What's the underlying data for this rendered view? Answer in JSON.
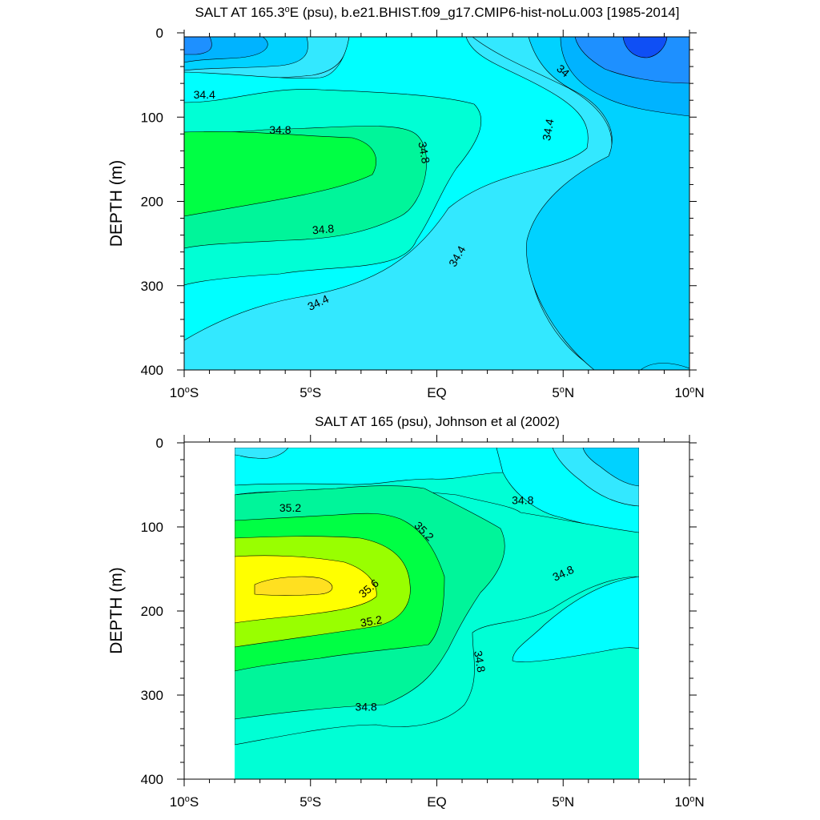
{
  "chart_data": [
    {
      "type": "contour",
      "title": "SALT AT 165.3°E (psu), b.e21.BHIST.f09_g17.CMIP6-hist-noLu.003 [1985-2014]",
      "title_parts": [
        "SALT AT 165.3",
        "E (psu), b.e21.BHIST.f09_g17.CMIP6-hist-noLu.003 [1985-2014]"
      ],
      "ylabel": "DEPTH (m)",
      "x_range": [
        -10,
        10
      ],
      "y_range": [
        0,
        400
      ],
      "y_inverted": true,
      "x_ticks": [
        {
          "value": -10,
          "num": "10",
          "hemi": "S"
        },
        {
          "value": -5,
          "num": "5",
          "hemi": "S"
        },
        {
          "value": 0,
          "num": "EQ",
          "hemi": ""
        },
        {
          "value": 5,
          "num": "5",
          "hemi": "N"
        },
        {
          "value": 10,
          "num": "10",
          "hemi": "N"
        }
      ],
      "y_ticks": [
        0,
        100,
        200,
        300,
        400
      ],
      "data_x_range": [
        -10,
        10
      ],
      "data_y_range": [
        5,
        400
      ],
      "contour_interval": 0.2,
      "levels": [
        {
          "min": 33.4,
          "max": 33.6,
          "color": "#0f4ff5"
        },
        {
          "min": 33.6,
          "max": 33.8,
          "color": "#1e90ff"
        },
        {
          "min": 33.8,
          "max": 34.0,
          "color": "#00b3ff"
        },
        {
          "min": 34.0,
          "max": 34.2,
          "color": "#00d2ff"
        },
        {
          "min": 34.2,
          "max": 34.4,
          "color": "#33e8ff"
        },
        {
          "min": 34.4,
          "max": 34.6,
          "color": "#00ffff"
        },
        {
          "min": 34.6,
          "max": 34.8,
          "color": "#00ffd5"
        },
        {
          "min": 34.8,
          "max": 35.0,
          "color": "#00f59a"
        },
        {
          "min": 35.0,
          "max": 35.2,
          "color": "#00ff44"
        }
      ],
      "contour_labels": [
        {
          "text": "34.4",
          "x": -9.2,
          "y": 73,
          "angle": 0
        },
        {
          "text": "34.8",
          "x": -6.2,
          "y": 115,
          "angle": 0
        },
        {
          "text": "34.8",
          "x": -0.5,
          "y": 142,
          "angle": 80
        },
        {
          "text": "34",
          "x": 5.0,
          "y": 45,
          "angle": 40
        },
        {
          "text": "34.4",
          "x": 4.4,
          "y": 115,
          "angle": -80
        },
        {
          "text": "34.8",
          "x": -4.5,
          "y": 233,
          "angle": -5
        },
        {
          "text": "34.4",
          "x": 0.8,
          "y": 265,
          "angle": -60
        },
        {
          "text": "34.4",
          "x": -4.7,
          "y": 320,
          "angle": -25
        }
      ]
    },
    {
      "type": "contour",
      "title": "SALT AT 165 (psu), Johnson et al (2002)",
      "ylabel": "DEPTH (m)",
      "x_range": [
        -10,
        10
      ],
      "y_range": [
        0,
        400
      ],
      "y_inverted": true,
      "x_ticks": [
        {
          "value": -10,
          "num": "10",
          "hemi": "S"
        },
        {
          "value": -5,
          "num": "5",
          "hemi": "S"
        },
        {
          "value": 0,
          "num": "EQ",
          "hemi": ""
        },
        {
          "value": 5,
          "num": "5",
          "hemi": "N"
        },
        {
          "value": 10,
          "num": "10",
          "hemi": "N"
        }
      ],
      "y_ticks": [
        0,
        100,
        200,
        300,
        400
      ],
      "data_x_range": [
        -8,
        8
      ],
      "data_y_range": [
        5,
        400
      ],
      "contour_interval": 0.2,
      "levels": [
        {
          "min": 34.2,
          "max": 34.4,
          "color": "#00d2ff"
        },
        {
          "min": 34.4,
          "max": 34.6,
          "color": "#33e8ff"
        },
        {
          "min": 34.6,
          "max": 34.8,
          "color": "#00ffff"
        },
        {
          "min": 34.8,
          "max": 35.0,
          "color": "#00ffd5"
        },
        {
          "min": 35.0,
          "max": 35.2,
          "color": "#00f59a"
        },
        {
          "min": 35.2,
          "max": 35.4,
          "color": "#00ff44"
        },
        {
          "min": 35.4,
          "max": 35.6,
          "color": "#99ff00"
        },
        {
          "min": 35.6,
          "max": 35.8,
          "color": "#ffff00"
        },
        {
          "min": 35.8,
          "max": 36.0,
          "color": "#ffe020"
        }
      ],
      "contour_labels": [
        {
          "text": "35.2",
          "x": -5.8,
          "y": 77,
          "angle": 0
        },
        {
          "text": "35.2",
          "x": -0.5,
          "y": 105,
          "angle": 45
        },
        {
          "text": "34.8",
          "x": 3.4,
          "y": 68,
          "angle": 0
        },
        {
          "text": "35.6",
          "x": -2.7,
          "y": 173,
          "angle": -40
        },
        {
          "text": "34.8",
          "x": 5.0,
          "y": 155,
          "angle": -25
        },
        {
          "text": "35.2",
          "x": -2.6,
          "y": 212,
          "angle": -10
        },
        {
          "text": "34.8",
          "x": 1.7,
          "y": 260,
          "angle": 80
        },
        {
          "text": "34.8",
          "x": -2.8,
          "y": 314,
          "angle": 0
        }
      ]
    }
  ]
}
